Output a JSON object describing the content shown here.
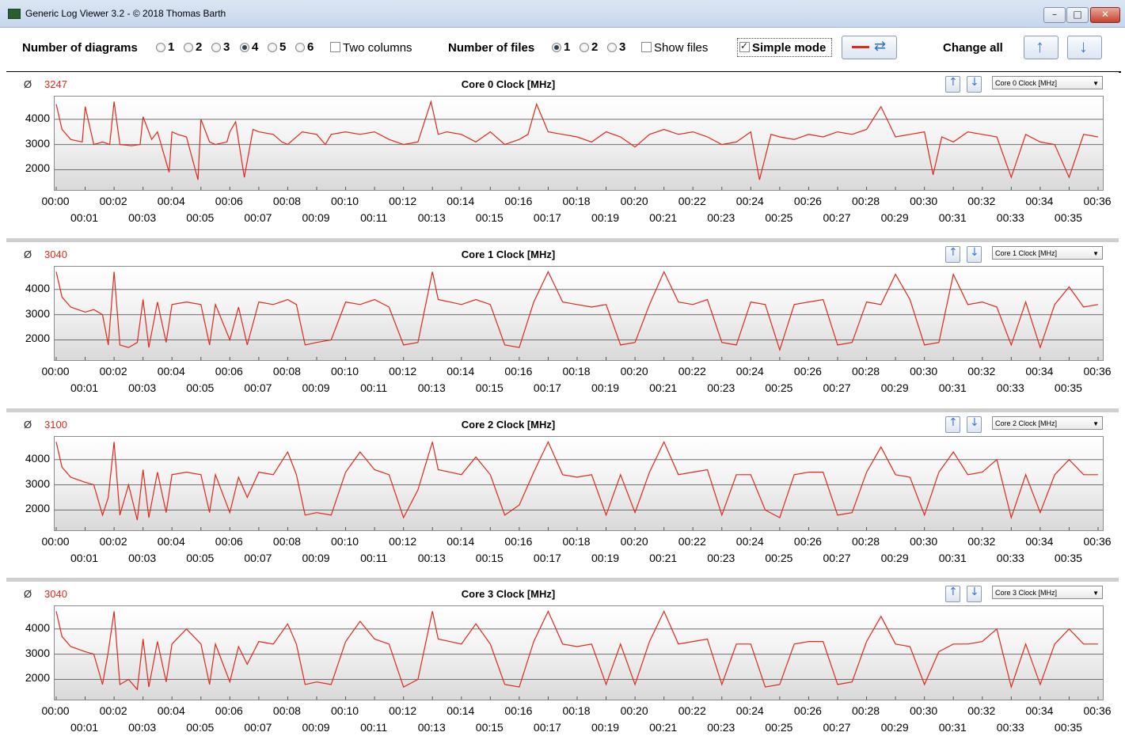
{
  "window": {
    "title": "Generic Log Viewer 3.2 - © 2018 Thomas Barth",
    "minimize": "–",
    "maximize": "□",
    "close": "✕"
  },
  "toolbar": {
    "num_diagrams_label": "Number of diagrams",
    "diagram_options": [
      "1",
      "2",
      "3",
      "4",
      "5",
      "6"
    ],
    "diagram_selected": "4",
    "two_columns_label": "Two columns",
    "two_columns_checked": false,
    "num_files_label": "Number of files",
    "file_options": [
      "1",
      "2",
      "3"
    ],
    "file_selected": "1",
    "show_files_label": "Show files",
    "show_files_checked": false,
    "simple_mode_label": "Simple mode",
    "simple_mode_checked": true,
    "change_all_label": "Change all"
  },
  "icons": {
    "line_color": "#e0281b",
    "refresh": "refresh-icon",
    "up": "arrow-up-icon",
    "down": "arrow-down-icon"
  },
  "axis": {
    "y_ticks": [
      "4000",
      "3000",
      "2000"
    ],
    "x_top": [
      "00:00",
      "00:02",
      "00:04",
      "00:06",
      "00:08",
      "00:10",
      "00:12",
      "00:14",
      "00:16",
      "00:18",
      "00:20",
      "00:22",
      "00:24",
      "00:26",
      "00:28",
      "00:30",
      "00:32",
      "00:34",
      "00:36"
    ],
    "x_bottom": [
      "00:01",
      "00:03",
      "00:05",
      "00:07",
      "00:09",
      "00:11",
      "00:13",
      "00:15",
      "00:17",
      "00:19",
      "00:21",
      "00:23",
      "00:25",
      "00:27",
      "00:29",
      "00:31",
      "00:33",
      "00:35"
    ]
  },
  "panels": [
    {
      "avg_symbol": "Ø",
      "avg": "3247",
      "title": "Core 0 Clock [MHz]",
      "selector": "Core 0 Clock [MHz]"
    },
    {
      "avg_symbol": "Ø",
      "avg": "3040",
      "title": "Core 1 Clock [MHz]",
      "selector": "Core 1 Clock [MHz]"
    },
    {
      "avg_symbol": "Ø",
      "avg": "3100",
      "title": "Core 2 Clock [MHz]",
      "selector": "Core 2 Clock [MHz]"
    },
    {
      "avg_symbol": "Ø",
      "avg": "3040",
      "title": "Core 3 Clock [MHz]",
      "selector": "Core 3 Clock [MHz]"
    }
  ],
  "chart_data": [
    {
      "type": "line",
      "title": "Core 0 Clock [MHz]",
      "ylim": [
        1200,
        4900
      ],
      "xlim_minutes": [
        0,
        36
      ],
      "x": [
        0,
        0.2,
        0.5,
        0.9,
        1,
        1.3,
        1.6,
        1.85,
        2,
        2.2,
        2.6,
        2.9,
        3,
        3.3,
        3.5,
        3.9,
        4,
        4.2,
        4.5,
        4.9,
        5,
        5.3,
        5.5,
        5.9,
        6,
        6.2,
        6.5,
        6.8,
        7,
        7.5,
        7.8,
        8,
        8.5,
        9,
        9.3,
        9.5,
        10,
        10.5,
        11,
        11.5,
        12,
        12.5,
        12.95,
        13.2,
        13.5,
        14,
        14.5,
        15,
        15.5,
        16,
        16.3,
        16.6,
        17,
        17.5,
        18,
        18.5,
        19,
        19.5,
        20,
        20.5,
        21,
        21.5,
        22,
        22.5,
        23,
        23.5,
        24,
        24.3,
        24.7,
        25,
        25.5,
        26,
        26.5,
        27,
        27.5,
        28,
        28.5,
        29,
        29.5,
        30,
        30.3,
        30.6,
        31,
        31.5,
        32,
        32.5,
        33,
        33.5,
        34,
        34.5,
        35,
        35.5,
        36
      ],
      "y": [
        4600,
        3600,
        3200,
        3100,
        4500,
        3000,
        3100,
        3000,
        4700,
        3000,
        2950,
        3000,
        4100,
        3200,
        3500,
        1900,
        3500,
        3400,
        3300,
        1600,
        4000,
        3100,
        3000,
        3100,
        3500,
        3900,
        1700,
        3600,
        3500,
        3400,
        3100,
        3000,
        3500,
        3400,
        3000,
        3400,
        3500,
        3400,
        3500,
        3200,
        3000,
        3100,
        4700,
        3400,
        3500,
        3400,
        3100,
        3500,
        3000,
        3200,
        3400,
        4600,
        3500,
        3400,
        3300,
        3100,
        3500,
        3300,
        2900,
        3400,
        3600,
        3400,
        3500,
        3300,
        3000,
        3100,
        3500,
        1600,
        3400,
        3300,
        3200,
        3400,
        3300,
        3500,
        3400,
        3600,
        4500,
        3300,
        3400,
        3500,
        1800,
        3300,
        3100,
        3500,
        3400,
        3300,
        1700,
        3400,
        3100,
        3000,
        1700,
        3400,
        3300
      ]
    },
    {
      "type": "line",
      "title": "Core 1 Clock [MHz]",
      "ylim": [
        1200,
        4900
      ],
      "xlim_minutes": [
        0,
        36
      ],
      "x": [
        0,
        0.2,
        0.5,
        1,
        1.3,
        1.6,
        1.8,
        2,
        2.2,
        2.5,
        2.8,
        3,
        3.2,
        3.5,
        3.8,
        4,
        4.5,
        5,
        5.3,
        5.5,
        6,
        6.3,
        6.6,
        7,
        7.5,
        8,
        8.3,
        8.6,
        9,
        9.5,
        10,
        10.5,
        11,
        11.5,
        12,
        12.5,
        13,
        13.2,
        13.6,
        14,
        14.5,
        15,
        15.5,
        16,
        16.5,
        17,
        17.5,
        18,
        18.5,
        19,
        19.5,
        20,
        20.5,
        21,
        21.5,
        22,
        22.5,
        23,
        23.5,
        24,
        24.5,
        25,
        25.5,
        26,
        26.5,
        27,
        27.5,
        28,
        28.5,
        29,
        29.5,
        30,
        30.5,
        31,
        31.5,
        32,
        32.5,
        33,
        33.5,
        34,
        34.5,
        35,
        35.5,
        36
      ],
      "y": [
        4700,
        3700,
        3300,
        3100,
        3200,
        3000,
        1800,
        4700,
        1800,
        1700,
        1900,
        3600,
        1700,
        3500,
        1900,
        3400,
        3500,
        3400,
        1800,
        3400,
        2000,
        3300,
        1800,
        3500,
        3400,
        3600,
        3400,
        1800,
        1900,
        2000,
        3500,
        3400,
        3600,
        3300,
        1800,
        1900,
        4700,
        3600,
        3500,
        3400,
        3600,
        3400,
        1800,
        1700,
        3500,
        4700,
        3500,
        3400,
        3300,
        3400,
        1800,
        1900,
        3400,
        4700,
        3500,
        3400,
        3600,
        1900,
        1800,
        3500,
        3400,
        1600,
        3400,
        3500,
        3600,
        1800,
        1900,
        3500,
        3400,
        4600,
        3600,
        1800,
        1900,
        4600,
        3400,
        3500,
        3300,
        1800,
        3500,
        1700,
        3400,
        4100,
        3300,
        3400
      ]
    },
    {
      "type": "line",
      "title": "Core 2 Clock [MHz]",
      "ylim": [
        1200,
        4900
      ],
      "xlim_minutes": [
        0,
        36
      ],
      "x": [
        0,
        0.2,
        0.5,
        1,
        1.3,
        1.6,
        1.8,
        2,
        2.2,
        2.5,
        2.8,
        3,
        3.2,
        3.5,
        3.8,
        4,
        4.5,
        5,
        5.3,
        5.5,
        6,
        6.3,
        6.6,
        7,
        7.5,
        8,
        8.3,
        8.6,
        9,
        9.5,
        10,
        10.5,
        11,
        11.5,
        12,
        12.5,
        13,
        13.2,
        13.6,
        14,
        14.5,
        15,
        15.5,
        16,
        16.5,
        17,
        17.5,
        18,
        18.5,
        19,
        19.5,
        20,
        20.5,
        21,
        21.5,
        22,
        22.5,
        23,
        23.5,
        24,
        24.5,
        25,
        25.5,
        26,
        26.5,
        27,
        27.5,
        28,
        28.5,
        29,
        29.5,
        30,
        30.5,
        31,
        31.5,
        32,
        32.5,
        33,
        33.5,
        34,
        34.5,
        35,
        35.5,
        36
      ],
      "y": [
        4700,
        3700,
        3300,
        3100,
        3000,
        1800,
        2500,
        4700,
        1800,
        3000,
        1600,
        3600,
        1700,
        3500,
        1900,
        3400,
        3500,
        3400,
        1900,
        3400,
        1900,
        3300,
        2500,
        3500,
        3400,
        4300,
        3400,
        1800,
        1900,
        1800,
        3500,
        4300,
        3600,
        3400,
        1700,
        2800,
        4700,
        3600,
        3500,
        3400,
        4100,
        3400,
        1800,
        2200,
        3500,
        4700,
        3400,
        3300,
        3400,
        1800,
        3400,
        1900,
        3500,
        4700,
        3400,
        3500,
        3600,
        1800,
        3400,
        3400,
        2000,
        1700,
        3400,
        3500,
        3500,
        1800,
        1900,
        3500,
        4500,
        3400,
        3300,
        1800,
        3500,
        4300,
        3400,
        3500,
        4000,
        1700,
        3400,
        1900,
        3400,
        4000,
        3400,
        3400
      ]
    },
    {
      "type": "line",
      "title": "Core 3 Clock [MHz]",
      "ylim": [
        1200,
        4900
      ],
      "xlim_minutes": [
        0,
        36
      ],
      "x": [
        0,
        0.2,
        0.5,
        1,
        1.3,
        1.6,
        1.8,
        2,
        2.2,
        2.5,
        2.8,
        3,
        3.2,
        3.5,
        3.8,
        4,
        4.5,
        5,
        5.3,
        5.5,
        6,
        6.3,
        6.6,
        7,
        7.5,
        8,
        8.3,
        8.6,
        9,
        9.5,
        10,
        10.5,
        11,
        11.5,
        12,
        12.5,
        13,
        13.2,
        13.6,
        14,
        14.5,
        15,
        15.5,
        16,
        16.5,
        17,
        17.5,
        18,
        18.5,
        19,
        19.5,
        20,
        20.5,
        21,
        21.5,
        22,
        22.5,
        23,
        23.5,
        24,
        24.5,
        25,
        25.5,
        26,
        26.5,
        27,
        27.5,
        28,
        28.5,
        29,
        29.5,
        30,
        30.5,
        31,
        31.5,
        32,
        32.5,
        33,
        33.5,
        34,
        34.5,
        35,
        35.5,
        36
      ],
      "y": [
        4700,
        3700,
        3300,
        3100,
        3000,
        1800,
        3100,
        4700,
        1800,
        2000,
        1600,
        3600,
        1700,
        3500,
        1900,
        3400,
        4000,
        3400,
        1800,
        3400,
        1900,
        3300,
        2600,
        3500,
        3400,
        4200,
        3400,
        1800,
        1900,
        1800,
        3500,
        4300,
        3600,
        3400,
        1700,
        2000,
        4700,
        3600,
        3500,
        3400,
        4200,
        3400,
        1800,
        1700,
        3500,
        4700,
        3400,
        3300,
        3400,
        1800,
        3400,
        1800,
        3500,
        4700,
        3400,
        3500,
        3600,
        1800,
        3400,
        3400,
        1700,
        1800,
        3400,
        3500,
        3500,
        1800,
        1900,
        3500,
        4500,
        3400,
        3300,
        1800,
        3100,
        3400,
        3400,
        3500,
        4000,
        1700,
        3400,
        1800,
        3400,
        4000,
        3400,
        3400
      ]
    }
  ]
}
